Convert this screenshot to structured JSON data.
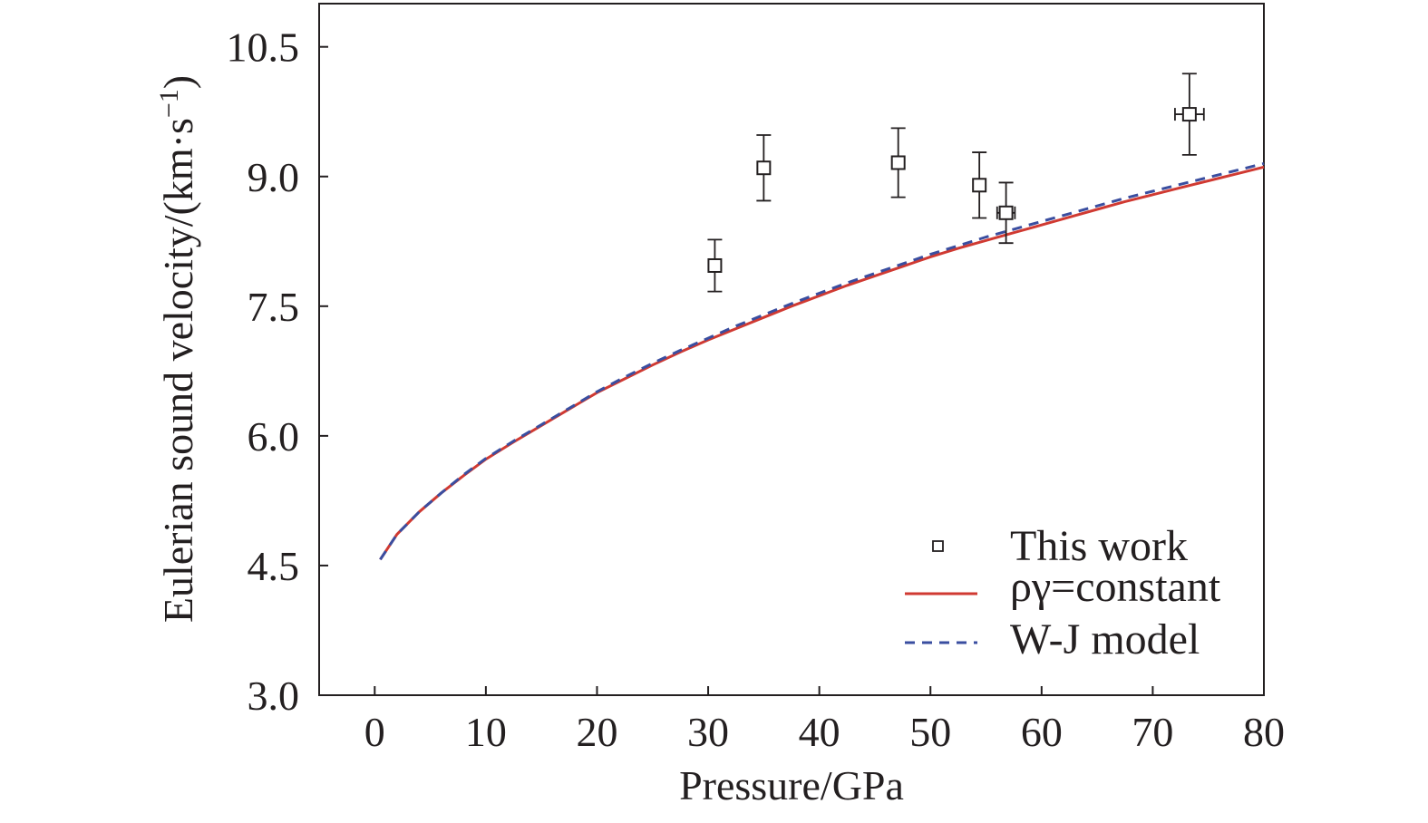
{
  "chart_data": {
    "type": "scatter",
    "title": "",
    "xlabel": "Pressure/GPa",
    "ylabel_main": "Eulerian sound velocity/(km·s",
    "ylabel_sup": "−1",
    "ylabel_close": ")",
    "xlim": [
      -5,
      80
    ],
    "ylim": [
      3.0,
      11.0
    ],
    "xticks": [
      "0",
      "10",
      "20",
      "30",
      "40",
      "50",
      "60",
      "70",
      "80"
    ],
    "yticks": [
      "3.0",
      "4.5",
      "6.0",
      "7.5",
      "9.0",
      "10.5"
    ],
    "legend_position": "bottom-right",
    "series": [
      {
        "name": "This work",
        "kind": "points",
        "marker": "open-square",
        "color": "#231f20",
        "points": [
          {
            "x": 30.6,
            "y": 7.97,
            "yerr": 0.3,
            "xerr": 0.0
          },
          {
            "x": 35.0,
            "y": 9.1,
            "yerr": 0.38,
            "xerr": 0.0
          },
          {
            "x": 47.1,
            "y": 9.16,
            "yerr": 0.4,
            "xerr": 0.5
          },
          {
            "x": 54.4,
            "y": 8.9,
            "yerr": 0.38,
            "xerr": 0.3
          },
          {
            "x": 56.8,
            "y": 8.58,
            "yerr": 0.35,
            "xerr": 0.8
          },
          {
            "x": 73.3,
            "y": 9.72,
            "yerr": 0.47,
            "xerr": 1.3
          }
        ]
      },
      {
        "name": "ργ=constant",
        "kind": "line",
        "style": "solid",
        "color": "#d03a32",
        "points": [
          {
            "x": 0.5,
            "y": 4.57
          },
          {
            "x": 2,
            "y": 4.86
          },
          {
            "x": 4,
            "y": 5.12
          },
          {
            "x": 6,
            "y": 5.34
          },
          {
            "x": 8,
            "y": 5.54
          },
          {
            "x": 10,
            "y": 5.73
          },
          {
            "x": 12.5,
            "y": 5.93
          },
          {
            "x": 15,
            "y": 6.12
          },
          {
            "x": 17.5,
            "y": 6.31
          },
          {
            "x": 20,
            "y": 6.5
          },
          {
            "x": 22.5,
            "y": 6.66
          },
          {
            "x": 25,
            "y": 6.82
          },
          {
            "x": 27.5,
            "y": 6.97
          },
          {
            "x": 30,
            "y": 7.11
          },
          {
            "x": 32.5,
            "y": 7.24
          },
          {
            "x": 35,
            "y": 7.37
          },
          {
            "x": 37.5,
            "y": 7.5
          },
          {
            "x": 40,
            "y": 7.62
          },
          {
            "x": 42.5,
            "y": 7.74
          },
          {
            "x": 45,
            "y": 7.85
          },
          {
            "x": 47.5,
            "y": 7.96
          },
          {
            "x": 50,
            "y": 8.07
          },
          {
            "x": 52.5,
            "y": 8.17
          },
          {
            "x": 55,
            "y": 8.26
          },
          {
            "x": 57.5,
            "y": 8.35
          },
          {
            "x": 60,
            "y": 8.44
          },
          {
            "x": 62.5,
            "y": 8.53
          },
          {
            "x": 65,
            "y": 8.62
          },
          {
            "x": 67.5,
            "y": 8.71
          },
          {
            "x": 70,
            "y": 8.79
          },
          {
            "x": 72.5,
            "y": 8.87
          },
          {
            "x": 75,
            "y": 8.95
          },
          {
            "x": 77.5,
            "y": 9.03
          },
          {
            "x": 80,
            "y": 9.11
          }
        ]
      },
      {
        "name": "W-J model",
        "kind": "line",
        "style": "dashed",
        "color": "#3a4ea0",
        "points": [
          {
            "x": 0.5,
            "y": 4.57
          },
          {
            "x": 2,
            "y": 4.86
          },
          {
            "x": 4,
            "y": 5.12
          },
          {
            "x": 6,
            "y": 5.34
          },
          {
            "x": 8,
            "y": 5.55
          },
          {
            "x": 10,
            "y": 5.74
          },
          {
            "x": 12.5,
            "y": 5.94
          },
          {
            "x": 15,
            "y": 6.13
          },
          {
            "x": 17.5,
            "y": 6.32
          },
          {
            "x": 20,
            "y": 6.51
          },
          {
            "x": 22.5,
            "y": 6.68
          },
          {
            "x": 25,
            "y": 6.84
          },
          {
            "x": 27.5,
            "y": 6.99
          },
          {
            "x": 30,
            "y": 7.13
          },
          {
            "x": 32.5,
            "y": 7.27
          },
          {
            "x": 35,
            "y": 7.4
          },
          {
            "x": 37.5,
            "y": 7.53
          },
          {
            "x": 40,
            "y": 7.65
          },
          {
            "x": 42.5,
            "y": 7.77
          },
          {
            "x": 45,
            "y": 7.88
          },
          {
            "x": 47.5,
            "y": 7.99
          },
          {
            "x": 50,
            "y": 8.1
          },
          {
            "x": 52.5,
            "y": 8.2
          },
          {
            "x": 55,
            "y": 8.3
          },
          {
            "x": 57.5,
            "y": 8.39
          },
          {
            "x": 60,
            "y": 8.48
          },
          {
            "x": 62.5,
            "y": 8.57
          },
          {
            "x": 65,
            "y": 8.66
          },
          {
            "x": 67.5,
            "y": 8.75
          },
          {
            "x": 70,
            "y": 8.83
          },
          {
            "x": 72.5,
            "y": 8.91
          },
          {
            "x": 75,
            "y": 8.99
          },
          {
            "x": 77.5,
            "y": 9.07
          },
          {
            "x": 80,
            "y": 9.15
          }
        ]
      }
    ]
  }
}
